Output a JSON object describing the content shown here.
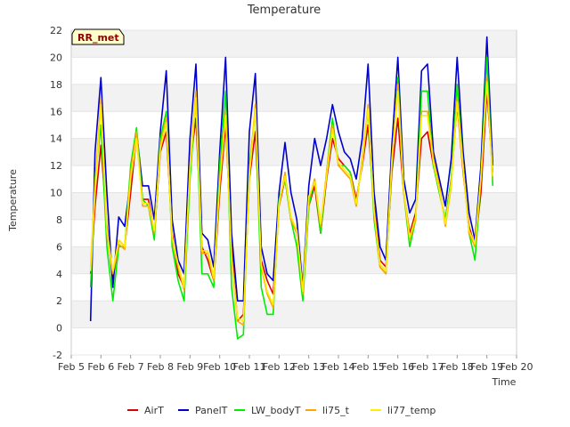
{
  "chart_data": {
    "type": "line",
    "title": "Temperature",
    "xlabel": "Time",
    "ylabel": "Temperature",
    "badge": "RR_met",
    "x_ticks": [
      "Feb 5",
      "Feb 6",
      "Feb 7",
      "Feb 8",
      "Feb 9",
      "Feb 10",
      "Feb 11",
      "Feb 12",
      "Feb 13",
      "Feb 14",
      "Feb 15",
      "Feb 16",
      "Feb 17",
      "Feb 18",
      "Feb 19",
      "Feb 20"
    ],
    "xlim": [
      5,
      20
    ],
    "ylim": [
      -2,
      22
    ],
    "y_ticks": [
      -2,
      0,
      2,
      4,
      6,
      8,
      10,
      12,
      14,
      16,
      18,
      20,
      22
    ],
    "x": [
      5.65,
      5.8,
      6.0,
      6.2,
      6.4,
      6.6,
      6.8,
      7.0,
      7.2,
      7.4,
      7.6,
      7.8,
      8.0,
      8.2,
      8.4,
      8.6,
      8.8,
      9.0,
      9.2,
      9.4,
      9.6,
      9.8,
      10.0,
      10.2,
      10.4,
      10.6,
      10.8,
      11.0,
      11.2,
      11.4,
      11.6,
      11.8,
      12.0,
      12.2,
      12.4,
      12.6,
      12.8,
      13.0,
      13.2,
      13.4,
      13.6,
      13.8,
      14.0,
      14.2,
      14.4,
      14.6,
      14.8,
      15.0,
      15.2,
      15.4,
      15.6,
      15.8,
      16.0,
      16.2,
      16.4,
      16.6,
      16.8,
      17.0,
      17.2,
      17.4,
      17.6,
      17.8,
      18.0,
      18.2,
      18.4,
      18.6,
      18.8,
      19.0,
      19.2
    ],
    "series": [
      {
        "name": "AirT",
        "color": "#dd0000",
        "values": [
          4.0,
          9.0,
          13.5,
          7.5,
          3.5,
          6.5,
          6.0,
          10.0,
          14.2,
          9.5,
          9.5,
          7.0,
          13.0,
          14.5,
          7.0,
          4.0,
          3.0,
          12.0,
          15.5,
          6.0,
          5.0,
          3.5,
          10.0,
          15.0,
          6.0,
          0.5,
          1.0,
          11.0,
          14.5,
          5.0,
          3.5,
          2.5,
          9.0,
          11.0,
          8.0,
          7.0,
          2.5,
          9.0,
          10.5,
          7.0,
          11.0,
          14.0,
          12.5,
          12.0,
          11.5,
          9.5,
          12.0,
          15.0,
          9.0,
          5.0,
          4.5,
          11.5,
          15.5,
          10.0,
          7.0,
          8.5,
          14.0,
          14.5,
          12.0,
          10.0,
          8.0,
          11.0,
          16.5,
          11.5,
          7.5,
          6.0,
          10.0,
          17.5,
          11.5
        ]
      },
      {
        "name": "PanelT",
        "color": "#0000cc",
        "values": [
          0.5,
          13.0,
          18.5,
          10.0,
          3.0,
          8.2,
          7.5,
          11.0,
          14.5,
          10.5,
          10.5,
          8.0,
          14.5,
          19.0,
          8.0,
          5.0,
          4.0,
          14.0,
          19.5,
          7.0,
          6.5,
          4.5,
          13.0,
          20.0,
          7.0,
          2.0,
          2.0,
          14.5,
          18.8,
          6.0,
          4.0,
          3.5,
          10.0,
          13.7,
          10.0,
          8.0,
          3.0,
          10.5,
          14.0,
          12.0,
          14.0,
          16.5,
          14.5,
          13.0,
          12.5,
          11.0,
          14.0,
          19.5,
          10.0,
          6.0,
          5.0,
          13.5,
          20.0,
          11.0,
          8.5,
          9.5,
          19.0,
          19.5,
          13.0,
          11.0,
          9.0,
          12.5,
          20.0,
          13.0,
          8.5,
          6.5,
          12.0,
          21.5,
          12.0
        ]
      },
      {
        "name": "LW_bodyT",
        "color": "#00ee00",
        "values": [
          3.0,
          11.0,
          15.0,
          6.0,
          2.0,
          6.0,
          6.0,
          12.0,
          14.8,
          9.5,
          9.0,
          6.5,
          14.0,
          16.0,
          6.0,
          3.5,
          2.0,
          11.0,
          17.0,
          4.0,
          4.0,
          3.0,
          12.0,
          17.5,
          3.0,
          -0.8,
          -0.5,
          12.0,
          16.0,
          3.0,
          1.0,
          1.0,
          9.5,
          11.0,
          8.0,
          6.0,
          2.0,
          9.0,
          11.0,
          7.0,
          11.5,
          15.5,
          12.0,
          12.0,
          11.5,
          9.0,
          12.5,
          16.0,
          8.0,
          4.5,
          4.0,
          12.0,
          18.5,
          10.0,
          6.0,
          8.0,
          17.5,
          17.5,
          12.0,
          10.0,
          8.0,
          11.0,
          18.0,
          12.0,
          7.0,
          5.0,
          11.0,
          20.0,
          10.5
        ]
      },
      {
        "name": "li75_t",
        "color": "#ffa500",
        "values": [
          4.5,
          10.5,
          17.0,
          7.0,
          4.0,
          6.2,
          5.8,
          11.5,
          14.5,
          9.0,
          9.0,
          7.0,
          13.5,
          15.5,
          6.5,
          4.5,
          2.8,
          12.0,
          17.5,
          5.5,
          5.5,
          3.5,
          11.0,
          16.0,
          5.0,
          0.5,
          0.2,
          11.5,
          16.5,
          4.5,
          2.5,
          1.5,
          9.0,
          11.5,
          8.0,
          7.0,
          2.5,
          9.5,
          11.0,
          7.5,
          11.5,
          15.0,
          12.0,
          11.5,
          11.0,
          9.0,
          12.5,
          16.5,
          8.5,
          4.5,
          4.0,
          12.5,
          18.0,
          10.0,
          6.5,
          8.0,
          16.0,
          16.0,
          12.5,
          10.5,
          7.5,
          10.5,
          17.0,
          12.0,
          7.0,
          6.0,
          11.0,
          18.5,
          11.0
        ]
      },
      {
        "name": "li77_temp",
        "color": "#ffee00",
        "values": [
          4.2,
          10.0,
          16.5,
          7.2,
          4.2,
          6.5,
          6.0,
          11.0,
          14.0,
          9.2,
          9.2,
          7.2,
          13.2,
          15.2,
          6.7,
          4.7,
          3.0,
          11.7,
          17.0,
          5.7,
          5.7,
          3.7,
          10.7,
          15.7,
          5.2,
          0.7,
          0.5,
          11.2,
          16.2,
          4.7,
          2.7,
          1.7,
          9.2,
          11.2,
          8.2,
          7.2,
          2.7,
          9.7,
          10.8,
          7.7,
          11.2,
          14.7,
          12.2,
          11.7,
          11.2,
          9.2,
          12.2,
          16.2,
          8.7,
          4.7,
          4.2,
          12.2,
          17.5,
          10.2,
          6.7,
          8.2,
          15.7,
          15.7,
          12.2,
          10.2,
          7.7,
          10.7,
          16.7,
          11.7,
          7.2,
          6.2,
          11.2,
          18.2,
          11.2
        ]
      }
    ]
  }
}
